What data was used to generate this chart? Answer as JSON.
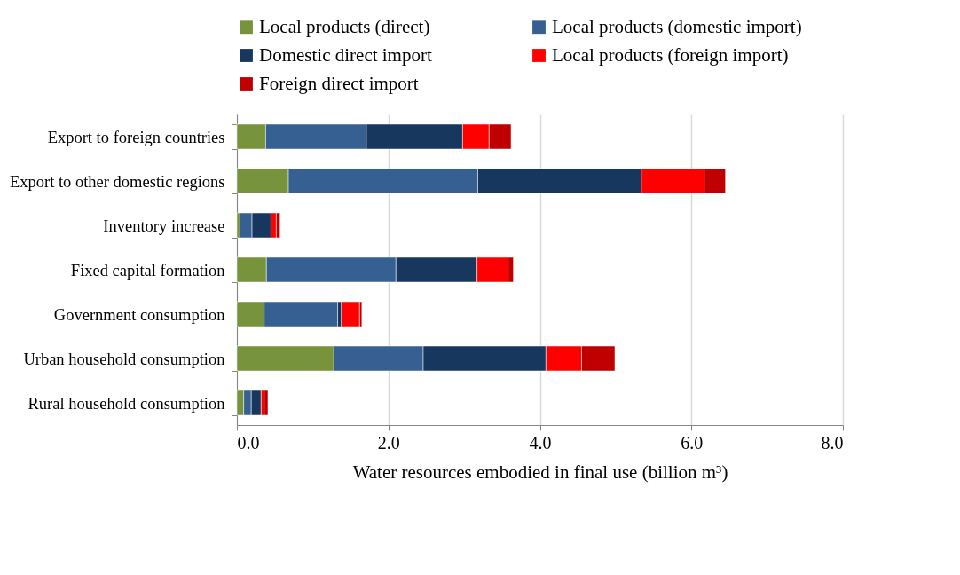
{
  "chart_data": {
    "type": "bar",
    "orientation": "horizontal",
    "stacked": true,
    "xlabel": "Water resources embodied in final use (billion m³)",
    "categories": [
      "Export to foreign countries",
      "Export to other domestic regions",
      "Inventory increase",
      "Fixed capital formation",
      "Government consumption",
      "Urban household consumption",
      "Rural household consumption"
    ],
    "series": [
      {
        "name": "Local products (direct)",
        "color": "#77933c",
        "values": [
          0.38,
          0.68,
          0.04,
          0.39,
          0.36,
          1.28,
          0.09
        ]
      },
      {
        "name": "Local products (domestic import)",
        "color": "#376092",
        "values": [
          1.33,
          2.5,
          0.16,
          1.71,
          0.97,
          1.18,
          0.1
        ]
      },
      {
        "name": "Domestic direct import",
        "color": "#17375e",
        "values": [
          1.27,
          2.16,
          0.25,
          1.07,
          0.05,
          1.62,
          0.13
        ]
      },
      {
        "name": "Local products (foreign import)",
        "color": "#ff0000",
        "values": [
          0.35,
          0.83,
          0.07,
          0.41,
          0.24,
          0.47,
          0.04
        ]
      },
      {
        "name": "Foreign direct import",
        "color": "#c00000",
        "values": [
          0.29,
          0.28,
          0.05,
          0.07,
          0.03,
          0.44,
          0.05
        ]
      }
    ],
    "xlim": [
      0,
      8
    ],
    "xticks": [
      {
        "value": 0,
        "label": "0.0"
      },
      {
        "value": 2,
        "label": "2.0"
      },
      {
        "value": 4,
        "label": "4.0"
      },
      {
        "value": 6,
        "label": "6.0"
      },
      {
        "value": 8,
        "label": "8.0"
      }
    ],
    "grid": "x",
    "legend": "top"
  }
}
